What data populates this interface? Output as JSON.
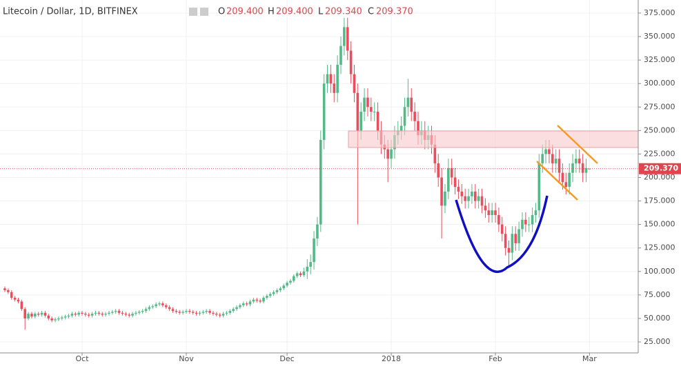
{
  "header": {
    "symbol": "Litecoin / Dollar, 1D, BITFINEX",
    "o_key": "O",
    "o": "209.400",
    "h_key": "H",
    "h": "209.400",
    "l_key": "L",
    "l": "209.340",
    "c_key": "C",
    "c": "209.370"
  },
  "chart_data": {
    "type": "candlestick",
    "categories": [
      null,
      null,
      null,
      null,
      null,
      null,
      null,
      null,
      null,
      null,
      null,
      null,
      null,
      null,
      null,
      null,
      null,
      null,
      null,
      null,
      null,
      null,
      null,
      "Oct",
      null,
      null,
      null,
      null,
      null,
      null,
      null,
      null,
      null,
      null,
      null,
      null,
      null,
      null,
      null,
      null,
      null,
      null,
      null,
      null,
      null,
      null,
      null,
      null,
      null,
      null,
      null,
      null,
      null,
      null,
      "Nov",
      null,
      null,
      null,
      null,
      null,
      null,
      null,
      null,
      null,
      null,
      null,
      null,
      null,
      null,
      null,
      null,
      null,
      null,
      null,
      null,
      null,
      null,
      null,
      null,
      null,
      null,
      null,
      null,
      null,
      "Dec",
      null,
      null,
      null,
      null,
      null,
      null,
      null,
      null,
      null,
      null,
      null,
      null,
      null,
      null,
      null,
      null,
      null,
      null,
      null,
      null,
      null,
      null,
      null,
      null,
      null,
      null,
      null,
      null,
      null,
      null,
      "2018",
      null,
      null,
      null,
      null,
      null,
      null,
      null,
      null,
      null,
      null,
      null,
      null,
      null,
      null,
      null,
      null,
      null,
      null,
      null,
      null,
      null,
      null,
      null,
      null,
      null,
      null,
      null,
      null,
      null,
      null,
      "Feb",
      null,
      null,
      null,
      null,
      null,
      null,
      null,
      null,
      null,
      null,
      null,
      null,
      null,
      null,
      null,
      null,
      null,
      null,
      null,
      null,
      null,
      null,
      null,
      null,
      null,
      null,
      null,
      "Mar"
    ],
    "open": [
      82,
      80,
      78,
      72,
      70,
      68,
      60,
      50,
      55,
      52,
      55,
      54,
      56,
      53,
      50,
      48,
      49,
      50,
      51,
      52,
      53,
      55,
      54,
      56,
      55,
      54,
      53,
      55,
      56,
      55,
      54,
      55,
      56,
      57,
      58,
      56,
      55,
      54,
      53,
      55,
      56,
      57,
      58,
      60,
      62,
      63,
      65,
      66,
      64,
      62,
      60,
      58,
      57,
      56,
      57,
      58,
      57,
      56,
      55,
      56,
      57,
      58,
      56,
      55,
      54,
      53,
      55,
      56,
      58,
      60,
      62,
      64,
      66,
      65,
      68,
      70,
      69,
      68,
      72,
      74,
      76,
      78,
      80,
      82,
      85,
      88,
      90,
      95,
      98,
      96,
      100,
      105,
      110,
      135,
      150,
      240,
      300,
      310,
      300,
      290,
      320,
      340,
      360,
      335,
      310,
      290,
      250,
      270,
      285,
      275,
      270,
      270,
      250,
      235,
      230,
      220,
      230,
      245,
      250,
      255,
      275,
      285,
      270,
      260,
      245,
      250,
      240,
      245,
      235,
      215,
      200,
      170,
      185,
      210,
      200,
      190,
      185,
      180,
      175,
      180,
      185,
      175,
      180,
      170,
      165,
      160,
      165,
      160,
      150,
      140,
      125,
      120,
      140,
      130,
      145,
      155,
      150,
      150,
      160,
      165,
      215,
      225,
      230,
      225,
      215,
      220,
      205,
      195,
      190,
      205,
      215,
      220,
      215,
      205,
      209.4
    ],
    "high": [
      84,
      82,
      80,
      74,
      72,
      70,
      62,
      57,
      57,
      57,
      57,
      58,
      58,
      55,
      52,
      51,
      52,
      53,
      54,
      55,
      57,
      57,
      58,
      58,
      57,
      56,
      57,
      58,
      58,
      57,
      57,
      58,
      59,
      60,
      60,
      58,
      57,
      56,
      57,
      58,
      59,
      60,
      62,
      64,
      65,
      67,
      68,
      68,
      66,
      64,
      62,
      60,
      59,
      59,
      60,
      60,
      59,
      58,
      58,
      59,
      60,
      60,
      58,
      57,
      56,
      57,
      58,
      60,
      62,
      64,
      66,
      68,
      68,
      70,
      72,
      72,
      71,
      74,
      76,
      78,
      80,
      82,
      84,
      87,
      90,
      92,
      97,
      100,
      100,
      104,
      113,
      118,
      143,
      158,
      250,
      310,
      320,
      320,
      310,
      330,
      350,
      370,
      370,
      345,
      320,
      300,
      280,
      295,
      295,
      285,
      280,
      280,
      260,
      245,
      240,
      240,
      255,
      260,
      265,
      285,
      305,
      295,
      280,
      270,
      260,
      260,
      255,
      255,
      245,
      225,
      210,
      193,
      220,
      220,
      210,
      198,
      193,
      188,
      188,
      193,
      193,
      188,
      188,
      178,
      173,
      173,
      173,
      168,
      158,
      148,
      133,
      148,
      148,
      153,
      163,
      163,
      158,
      168,
      173,
      225,
      235,
      240,
      240,
      235,
      230,
      230,
      215,
      205,
      215,
      225,
      230,
      230,
      225,
      220,
      209.4
    ],
    "low": [
      78,
      76,
      70,
      68,
      66,
      58,
      38,
      48,
      50,
      50,
      52,
      52,
      51,
      48,
      46,
      46,
      47,
      48,
      49,
      50,
      51,
      52,
      52,
      53,
      52,
      51,
      51,
      53,
      53,
      52,
      52,
      53,
      54,
      55,
      54,
      53,
      52,
      51,
      51,
      53,
      54,
      55,
      56,
      58,
      60,
      61,
      63,
      62,
      60,
      58,
      56,
      55,
      54,
      54,
      55,
      55,
      54,
      53,
      53,
      54,
      55,
      54,
      53,
      52,
      51,
      51,
      53,
      54,
      56,
      58,
      60,
      62,
      63,
      63,
      66,
      67,
      66,
      66,
      70,
      72,
      74,
      76,
      78,
      80,
      83,
      86,
      88,
      93,
      94,
      94,
      92,
      97,
      102,
      127,
      142,
      230,
      290,
      290,
      280,
      280,
      310,
      330,
      325,
      300,
      280,
      150,
      240,
      260,
      265,
      260,
      260,
      240,
      225,
      220,
      195,
      210,
      220,
      235,
      240,
      245,
      265,
      260,
      250,
      235,
      235,
      230,
      230,
      225,
      205,
      190,
      135,
      162,
      177,
      192,
      182,
      177,
      172,
      167,
      167,
      172,
      167,
      167,
      162,
      157,
      152,
      152,
      152,
      142,
      132,
      117,
      105,
      112,
      122,
      122,
      137,
      142,
      142,
      142,
      152,
      157,
      205,
      215,
      215,
      205,
      205,
      195,
      187,
      182,
      182,
      195,
      205,
      205,
      195,
      195,
      209.34
    ],
    "close": [
      80,
      78,
      72,
      70,
      68,
      60,
      50,
      55,
      52,
      55,
      54,
      56,
      53,
      50,
      48,
      49,
      50,
      51,
      52,
      53,
      55,
      54,
      56,
      55,
      54,
      53,
      55,
      56,
      55,
      54,
      55,
      56,
      57,
      58,
      56,
      55,
      54,
      53,
      55,
      56,
      57,
      58,
      60,
      62,
      63,
      65,
      66,
      64,
      62,
      60,
      58,
      57,
      56,
      57,
      58,
      57,
      56,
      55,
      56,
      57,
      58,
      56,
      55,
      54,
      53,
      55,
      56,
      58,
      60,
      62,
      64,
      66,
      65,
      68,
      70,
      69,
      68,
      72,
      74,
      76,
      78,
      80,
      82,
      85,
      88,
      90,
      95,
      98,
      96,
      100,
      105,
      110,
      135,
      150,
      240,
      300,
      310,
      300,
      290,
      320,
      340,
      360,
      335,
      310,
      290,
      250,
      270,
      285,
      275,
      270,
      270,
      250,
      235,
      230,
      220,
      230,
      245,
      250,
      255,
      275,
      285,
      270,
      260,
      245,
      250,
      240,
      245,
      235,
      215,
      200,
      170,
      185,
      210,
      200,
      190,
      185,
      180,
      175,
      180,
      185,
      175,
      180,
      170,
      165,
      160,
      165,
      160,
      150,
      140,
      125,
      120,
      140,
      130,
      145,
      155,
      150,
      150,
      160,
      165,
      215,
      225,
      230,
      225,
      215,
      220,
      205,
      195,
      190,
      205,
      215,
      220,
      215,
      205,
      210,
      209.37
    ],
    "up_color": "#53b987",
    "down_color": "#eb4d5c",
    "ylim": [
      13.3,
      388.9
    ],
    "yticks": [
      {
        "value": 25,
        "label": "25.000"
      },
      {
        "value": 50,
        "label": "50.000"
      },
      {
        "value": 75,
        "label": "75.000"
      },
      {
        "value": 100,
        "label": "100.000"
      },
      {
        "value": 125,
        "label": "125.000"
      },
      {
        "value": 150,
        "label": "150.000"
      },
      {
        "value": 175,
        "label": "175.000"
      },
      {
        "value": 200,
        "label": "200.000"
      },
      {
        "value": 225,
        "label": "225.000"
      },
      {
        "value": 250,
        "label": "250.000"
      },
      {
        "value": 275,
        "label": "275.000"
      },
      {
        "value": 300,
        "label": "300.000"
      },
      {
        "value": 325,
        "label": "325.000"
      },
      {
        "value": 350,
        "label": "350.000"
      },
      {
        "value": 375,
        "label": "375.000"
      }
    ],
    "grid": true
  }
}
